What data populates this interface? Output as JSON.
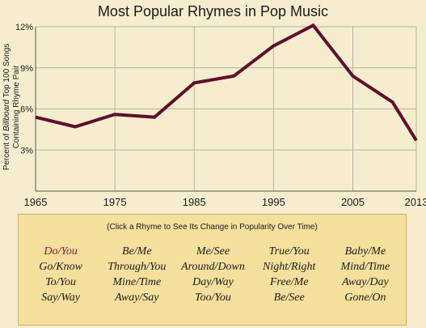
{
  "chart_data": {
    "type": "line",
    "title": "Most Popular Rhymes in Pop Music",
    "ylabel_prefix": "Percent of ",
    "ylabel_italic": "Billboard",
    "ylabel_suffix": " Top 100 Songs",
    "ylabel_line2": "Containing Rhyme Pair",
    "x": [
      1965,
      1970,
      1975,
      1980,
      1985,
      1990,
      1995,
      2000,
      2005,
      2010,
      2013
    ],
    "series": [
      {
        "values": [
          5.4,
          4.7,
          5.6,
          5.4,
          7.9,
          8.4,
          10.6,
          12.1,
          8.4,
          6.5,
          3.7
        ]
      }
    ],
    "xticks": [
      1965,
      1975,
      1985,
      1995,
      2005,
      2013
    ],
    "xtick_labels": [
      "1965",
      "1975",
      "1985",
      "1995",
      "2005",
      "2013"
    ],
    "yticks": [
      3,
      6,
      9,
      12
    ],
    "ytick_labels": [
      "3%",
      "6%",
      "9%",
      "12%"
    ],
    "xlim": [
      1965,
      2013
    ],
    "ylim": [
      0,
      12
    ],
    "grid": true,
    "line_color": "#5e0f2c"
  },
  "panel": {
    "hint": "(Click a Rhyme to See Its Change in Popularity Over Time)",
    "active_color": "#7a1b3a",
    "rhymes": [
      "Do/You",
      "Be/Me",
      "Me/See",
      "True/You",
      "Baby/Me",
      "Go/Know",
      "Through/You",
      "Around/Down",
      "Night/Right",
      "Mind/Time",
      "To/You",
      "Mine/Time",
      "Day/Way",
      "Free/Me",
      "Away/Day",
      "Say/Way",
      "Away/Say",
      "Too/You",
      "Be/See",
      "Gone/On"
    ],
    "selected": "Do/You"
  }
}
